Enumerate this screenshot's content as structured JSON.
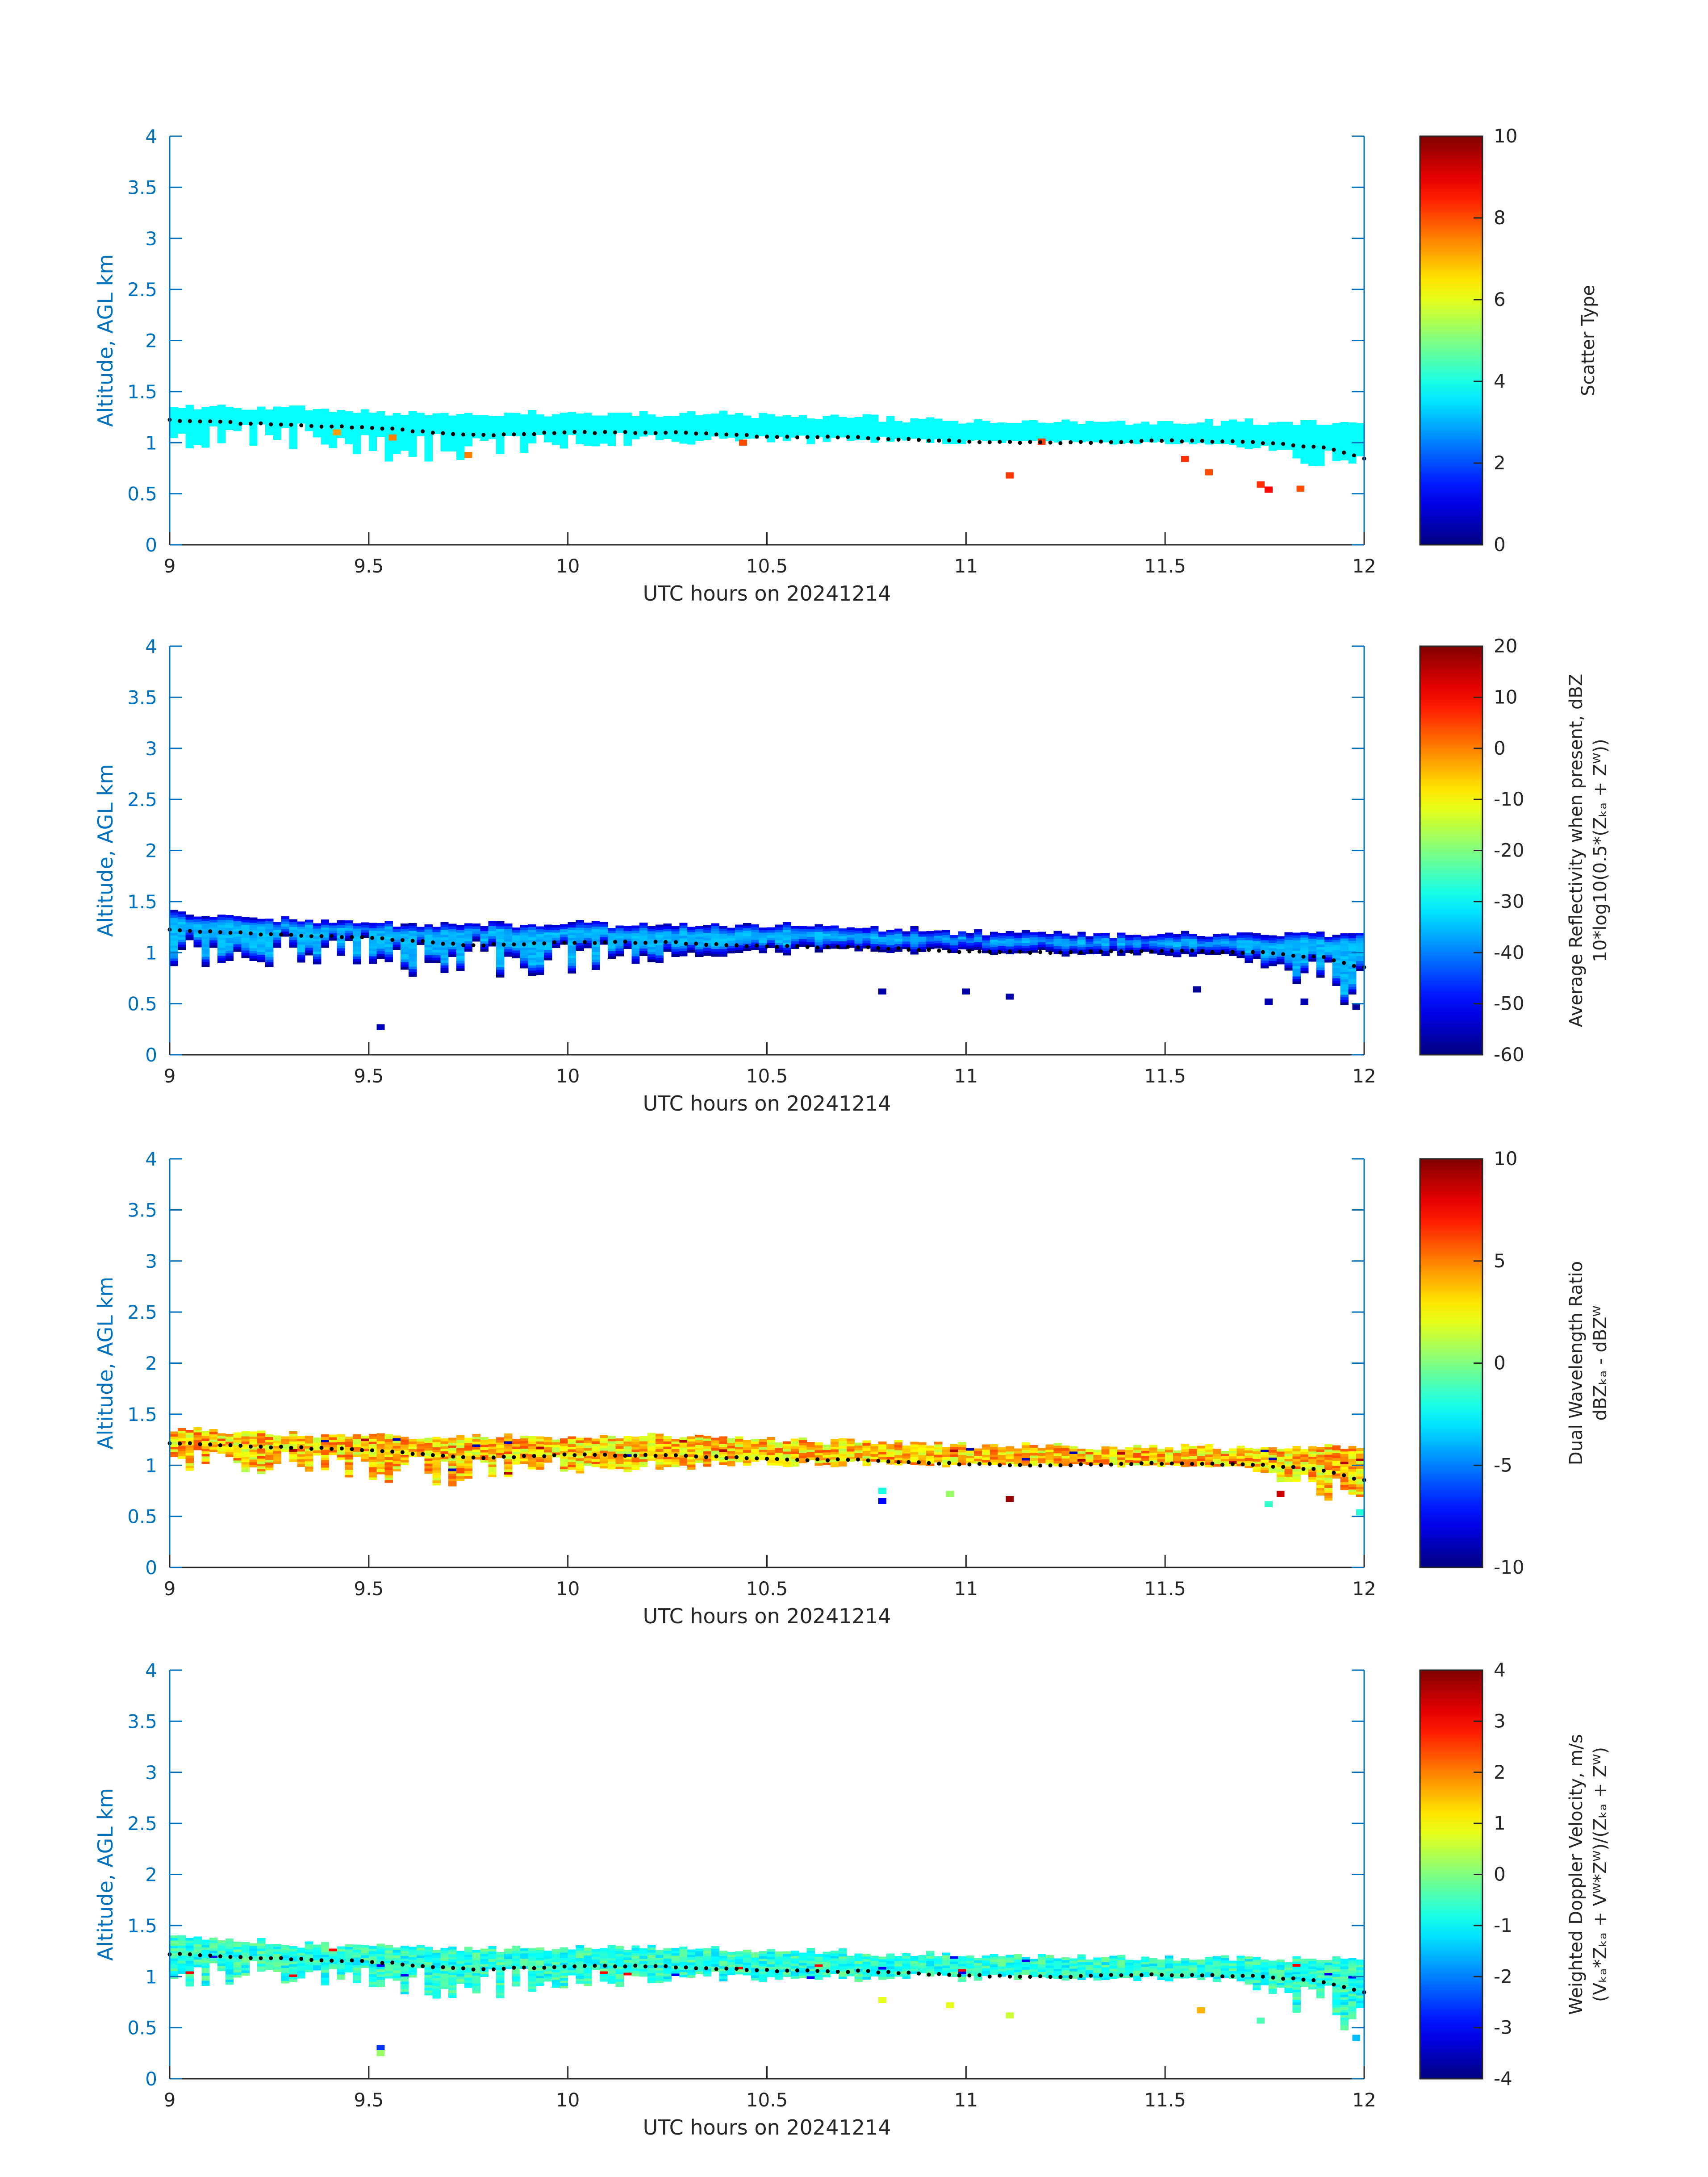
{
  "chart_data": [
    {
      "type": "heatmap",
      "xlabel": "UTC hours on 20241214",
      "ylabel": "Altitude, AGL km",
      "xlim": [
        9,
        12
      ],
      "ylim": [
        0,
        4
      ],
      "xticks": [
        "9",
        "9.5",
        "10",
        "10.5",
        "11",
        "11.5",
        "12"
      ],
      "yticks": [
        "0",
        "0.5",
        "1",
        "1.5",
        "2",
        "2.5",
        "3",
        "3.5",
        "4"
      ],
      "colorbar": {
        "label": [
          "Scatter Type"
        ],
        "clim": [
          0,
          10
        ],
        "ticks": [
          "0",
          "2",
          "4",
          "6",
          "8",
          "10"
        ],
        "colormap": "jet"
      },
      "layer": {
        "base": [
          1.24,
          1.22,
          1.2,
          1.12,
          1.1,
          1.08,
          1.05,
          1.03,
          1.0,
          0.95
        ],
        "top": [
          1.37,
          1.33,
          1.28,
          1.28,
          1.28,
          1.25,
          1.22,
          1.2,
          1.2,
          1.2
        ],
        "bottom": [
          0.92,
          0.93,
          0.75,
          0.95,
          0.98,
          0.98,
          0.98,
          0.98,
          0.98,
          0.55
        ],
        "dominant_value": 3.8,
        "variability": 0
      },
      "outliers": [
        [
          9.41,
          1.08,
          7.2
        ],
        [
          9.55,
          1.03,
          7.5
        ],
        [
          9.74,
          0.86,
          7.5
        ],
        [
          10.43,
          0.98,
          8.0
        ],
        [
          11.1,
          0.66,
          8.2
        ],
        [
          11.18,
          0.99,
          8.2
        ],
        [
          11.54,
          0.82,
          8.3
        ],
        [
          11.6,
          0.69,
          8.0
        ],
        [
          11.73,
          0.57,
          8.3
        ],
        [
          11.75,
          0.52,
          8.7
        ],
        [
          11.83,
          0.53,
          8.0
        ]
      ],
      "cloud_top": {
        "x": [
          9.0,
          9.25,
          9.5,
          9.75,
          10.0,
          10.25,
          10.5,
          10.75,
          11.0,
          11.25,
          11.5,
          11.75,
          11.9,
          12.0
        ],
        "y": [
          1.22,
          1.18,
          1.15,
          1.07,
          1.1,
          1.1,
          1.06,
          1.05,
          1.01,
          1.0,
          1.02,
          1.0,
          0.95,
          0.85
        ]
      }
    },
    {
      "type": "heatmap",
      "xlabel": "UTC hours on 20241214",
      "ylabel": "Altitude, AGL km",
      "xlim": [
        9,
        12
      ],
      "ylim": [
        0,
        4
      ],
      "xticks": [
        "9",
        "9.5",
        "10",
        "10.5",
        "11",
        "11.5",
        "12"
      ],
      "yticks": [
        "0",
        "0.5",
        "1",
        "1.5",
        "2",
        "2.5",
        "3",
        "3.5",
        "4"
      ],
      "colorbar": {
        "label": [
          "Average Reflectivity when present, dBZ",
          "10*log10(0.5*(Zₖₐ + Zᵂ))"
        ],
        "clim": [
          -60,
          20
        ],
        "ticks": [
          "-60",
          "-50",
          "-40",
          "-30",
          "-20",
          "-10",
          "0",
          "10",
          "20"
        ],
        "colormap": "jet"
      },
      "layer": {
        "base": [
          1.22,
          1.2,
          1.18,
          1.12,
          1.1,
          1.08,
          1.05,
          1.03,
          1.0,
          0.95
        ],
        "top": [
          1.4,
          1.32,
          1.28,
          1.28,
          1.28,
          1.26,
          1.2,
          1.18,
          1.18,
          1.18
        ],
        "bottom": [
          0.85,
          0.85,
          0.72,
          0.72,
          0.95,
          0.98,
          0.98,
          0.95,
          0.95,
          0.4
        ],
        "edge_value": -58,
        "core_value": -36,
        "variability": 4
      },
      "outliers": [
        [
          9.52,
          0.25,
          -55
        ],
        [
          10.78,
          0.6,
          -57
        ],
        [
          10.99,
          0.6,
          -57
        ],
        [
          11.1,
          0.55,
          -57
        ],
        [
          11.57,
          0.62,
          -58
        ],
        [
          11.75,
          0.5,
          -56
        ],
        [
          11.84,
          0.5,
          -56
        ],
        [
          11.97,
          0.45,
          -58
        ]
      ],
      "cloud_top": {
        "x": [
          9.0,
          9.25,
          9.5,
          9.75,
          10.0,
          10.25,
          10.5,
          10.75,
          11.0,
          11.25,
          11.5,
          11.75,
          11.9,
          12.0
        ],
        "y": [
          1.22,
          1.18,
          1.15,
          1.07,
          1.1,
          1.1,
          1.06,
          1.05,
          1.01,
          1.0,
          1.02,
          1.0,
          0.95,
          0.85
        ]
      }
    },
    {
      "type": "heatmap",
      "xlabel": "UTC hours on 20241214",
      "ylabel": "Altitude, AGL km",
      "xlim": [
        9,
        12
      ],
      "ylim": [
        0,
        4
      ],
      "xticks": [
        "9",
        "9.5",
        "10",
        "10.5",
        "11",
        "11.5",
        "12"
      ],
      "yticks": [
        "0",
        "0.5",
        "1",
        "1.5",
        "2",
        "2.5",
        "3",
        "3.5",
        "4"
      ],
      "colorbar": {
        "label": [
          "Dual Wavelength Ratio",
          "dBZₖₐ - dBZᵂ"
        ],
        "clim": [
          -10,
          10
        ],
        "ticks": [
          "-10",
          "-5",
          "0",
          "5",
          "10"
        ],
        "colormap": "jet"
      },
      "layer": {
        "base": [
          1.2,
          1.18,
          1.15,
          1.1,
          1.08,
          1.06,
          1.04,
          1.02,
          1.0,
          0.95
        ],
        "top": [
          1.36,
          1.3,
          1.28,
          1.28,
          1.28,
          1.24,
          1.2,
          1.18,
          1.18,
          1.18
        ],
        "bottom": [
          0.9,
          0.92,
          0.78,
          0.88,
          0.95,
          0.98,
          0.98,
          0.98,
          0.98,
          0.5
        ],
        "dominant_value": 3.5,
        "variability": 2.5
      },
      "outliers": [
        [
          10.78,
          0.63,
          -7.5
        ],
        [
          10.78,
          0.73,
          -2
        ],
        [
          10.95,
          0.7,
          0.5
        ],
        [
          11.1,
          0.65,
          9.5
        ],
        [
          11.75,
          0.6,
          -1.5
        ],
        [
          11.78,
          0.7,
          8.5
        ],
        [
          11.98,
          0.52,
          -1.8
        ]
      ],
      "cloud_top": {
        "x": [
          9.0,
          9.25,
          9.5,
          9.75,
          10.0,
          10.25,
          10.5,
          10.75,
          11.0,
          11.25,
          11.5,
          11.75,
          11.9,
          12.0
        ],
        "y": [
          1.22,
          1.18,
          1.15,
          1.07,
          1.1,
          1.1,
          1.06,
          1.05,
          1.01,
          1.0,
          1.02,
          1.0,
          0.95,
          0.85
        ]
      }
    },
    {
      "type": "heatmap",
      "xlabel": "UTC hours on 20241214",
      "ylabel": "Altitude, AGL km",
      "xlim": [
        9,
        12
      ],
      "ylim": [
        0,
        4
      ],
      "xticks": [
        "9",
        "9.5",
        "10",
        "10.5",
        "11",
        "11.5",
        "12"
      ],
      "yticks": [
        "0",
        "0.5",
        "1",
        "1.5",
        "2",
        "2.5",
        "3",
        "3.5",
        "4"
      ],
      "colorbar": {
        "label": [
          "Weighted Doppler Velocity, m/s",
          "(Vₖₐ*Zₖₐ + Vᵂ*Zᵂ)/(Zₖₐ + Zᵂ)"
        ],
        "clim": [
          -4,
          4
        ],
        "ticks": [
          "-4",
          "-3",
          "-2",
          "-1",
          "0",
          "1",
          "2",
          "3",
          "4"
        ],
        "colormap": "jet"
      },
      "layer": {
        "base": [
          1.2,
          1.18,
          1.15,
          1.1,
          1.08,
          1.06,
          1.04,
          1.02,
          1.0,
          0.95
        ],
        "top": [
          1.4,
          1.32,
          1.28,
          1.28,
          1.28,
          1.24,
          1.2,
          1.18,
          1.18,
          1.18
        ],
        "bottom": [
          0.9,
          0.92,
          0.72,
          0.85,
          0.95,
          0.95,
          0.95,
          0.95,
          0.95,
          0.3
        ],
        "dominant_value": -0.7,
        "variability": 0.6
      },
      "outliers": [
        [
          9.52,
          0.28,
          -2.6
        ],
        [
          9.52,
          0.23,
          0.2
        ],
        [
          10.78,
          0.75,
          0.8
        ],
        [
          10.95,
          0.7,
          0.8
        ],
        [
          11.1,
          0.6,
          0.6
        ],
        [
          11.58,
          0.65,
          1.6
        ],
        [
          11.73,
          0.55,
          -0.4
        ],
        [
          11.97,
          0.38,
          -1.5
        ]
      ],
      "cloud_top": {
        "x": [
          9.0,
          9.25,
          9.5,
          9.75,
          10.0,
          10.25,
          10.5,
          10.75,
          11.0,
          11.25,
          11.5,
          11.75,
          11.9,
          12.0
        ],
        "y": [
          1.22,
          1.18,
          1.15,
          1.07,
          1.1,
          1.1,
          1.06,
          1.05,
          1.01,
          1.0,
          1.02,
          1.0,
          0.95,
          0.85
        ]
      }
    }
  ]
}
